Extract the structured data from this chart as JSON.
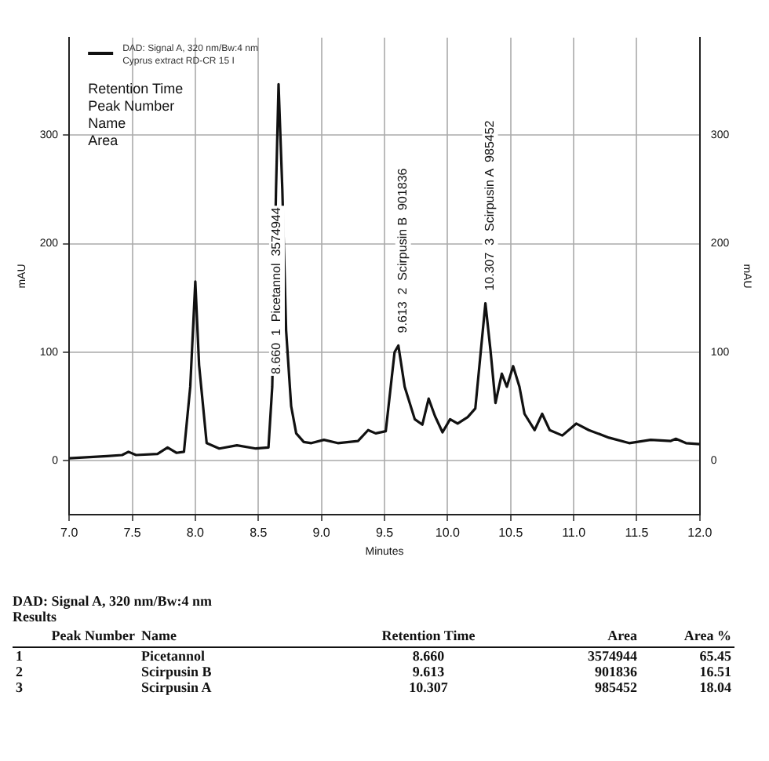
{
  "chart_data": {
    "type": "line",
    "xlabel": "Minutes",
    "ylabel": "mAU",
    "y2label": "mAU",
    "xlim": [
      7,
      12
    ],
    "xticks": [
      {
        "value": 7,
        "label": "7.0"
      },
      {
        "value": 7.5,
        "label": "7.5"
      },
      {
        "value": 8,
        "label": "8.0"
      },
      {
        "value": 8.5,
        "label": "8.5"
      },
      {
        "value": 9,
        "label": "9.0"
      },
      {
        "value": 9.5,
        "label": "9.5"
      },
      {
        "value": 10,
        "label": "10.0"
      },
      {
        "value": 10.5,
        "label": "10.5"
      },
      {
        "value": 11,
        "label": "11.0"
      },
      {
        "value": 11.5,
        "label": "11.5"
      },
      {
        "value": 12,
        "label": "12.0"
      }
    ],
    "ylim": [
      -50,
      390
    ],
    "yticks": [
      0,
      100,
      200,
      300
    ],
    "y2lim": [
      -50,
      390
    ],
    "y2ticks": [
      0,
      100,
      200,
      300
    ],
    "grid": true,
    "legend": "top left",
    "series": [
      {
        "name": "DAD: Signal A, 320 nm/Bw:4 nm\nCyprus extract RD-CR 15 I",
        "color": "#111111",
        "x": [
          7.0,
          7.3,
          7.42,
          7.47,
          7.53,
          7.7,
          7.78,
          7.85,
          7.91,
          7.96,
          8.0,
          8.03,
          8.09,
          8.19,
          8.33,
          8.48,
          8.58,
          8.61,
          8.64,
          8.66,
          8.69,
          8.72,
          8.76,
          8.8,
          8.86,
          8.92,
          9.02,
          9.13,
          9.29,
          9.37,
          9.43,
          9.51,
          9.58,
          9.61,
          9.66,
          9.74,
          9.8,
          9.85,
          9.9,
          9.96,
          10.02,
          10.08,
          10.16,
          10.22,
          10.3,
          10.34,
          10.38,
          10.43,
          10.47,
          10.52,
          10.57,
          10.61,
          10.69,
          10.75,
          10.81,
          10.91,
          11.02,
          11.12,
          11.28,
          11.44,
          11.61,
          11.77,
          11.81,
          11.89,
          12.0
        ],
        "values": [
          2,
          4,
          5,
          8,
          5,
          6,
          12,
          7,
          8,
          68,
          165,
          88,
          16,
          11,
          14,
          11,
          12,
          68,
          250,
          347,
          250,
          120,
          50,
          25,
          17,
          16,
          19,
          16,
          18,
          28,
          25,
          27,
          100,
          106,
          68,
          38,
          33,
          57,
          41,
          26,
          38,
          34,
          40,
          48,
          145,
          102,
          53,
          80,
          68,
          87,
          68,
          43,
          28,
          43,
          28,
          23,
          34,
          28,
          21,
          16,
          19,
          18,
          20,
          16,
          15
        ]
      }
    ],
    "annotations": [
      "Retention Time",
      "Peak Number",
      "Name",
      "Area",
      "DAD: Signal A, 320 nm/Bw:4 nm Results",
      "Peak Number",
      "Name",
      "Retention Time",
      "Area",
      "Area %",
      "1",
      "Picetannol",
      "8.660",
      "3574944",
      "65.45",
      "2",
      "Scirpusin B",
      "9.613",
      "901836",
      "16.51",
      "3",
      "Scirpusin A",
      "10.307",
      "985452",
      "18.04",
      {
        "text": "8.660  1  Picetannol  3574944",
        "x": 8.61,
        "y": 68
      },
      {
        "text": "9.613  2  Scirpusin B  901836",
        "x": 9.61,
        "y": 106
      },
      {
        "text": "10.307  3  Scirpusin A  985452",
        "x": 10.3,
        "y": 145
      }
    ]
  }
}
